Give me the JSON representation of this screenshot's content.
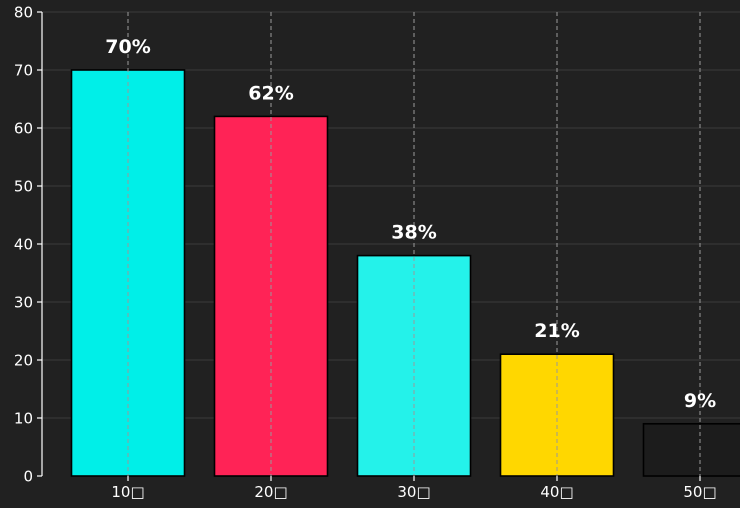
{
  "chart_data": {
    "type": "bar",
    "categories": [
      "10代",
      "20代",
      "30代",
      "40代",
      "50代"
    ],
    "category_labels_rendered": [
      "10□",
      "20□",
      "30□",
      "40□",
      "50□"
    ],
    "values": [
      70,
      62,
      38,
      21,
      9
    ],
    "data_labels": [
      "70%",
      "62%",
      "38%",
      "21%",
      "9%"
    ],
    "bar_colors": [
      "#00efe8",
      "#ff2356",
      "#24f2ea",
      "#ffd700",
      "#1c1c1c"
    ],
    "title": "",
    "xlabel": "",
    "ylabel": "",
    "ylim": [
      0,
      80
    ],
    "yticks": [
      0,
      10,
      20,
      30,
      40,
      50,
      60,
      70,
      80
    ],
    "grid": {
      "horizontal": true,
      "vertical_dashed_at_categories": true
    },
    "colors": {
      "background": "#212121",
      "axis": "#ffffff",
      "text": "#ffffff",
      "grid": "#3a3a3a",
      "vgrid": "#9a9a9a",
      "bar_edge": "#000000"
    }
  }
}
